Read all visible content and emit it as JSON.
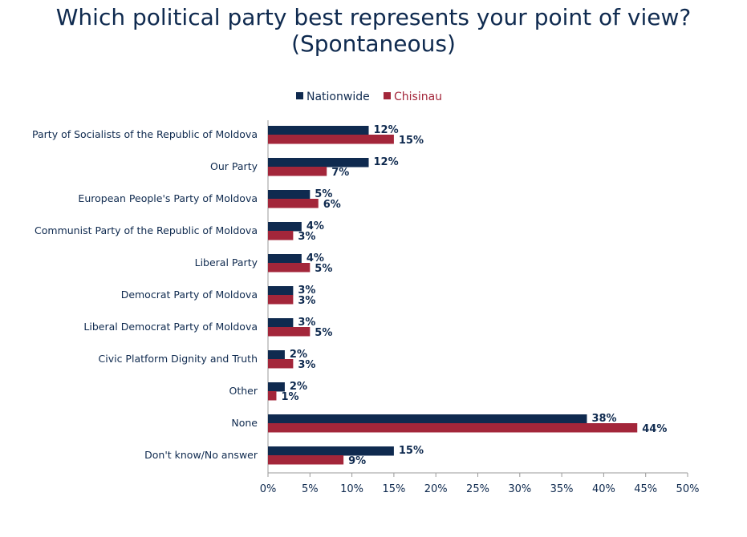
{
  "chart_data": {
    "type": "bar",
    "orientation": "horizontal",
    "title": "Which political party best represents your point of view?",
    "subtitle": "(Spontaneous)",
    "categories": [
      "Party of Socialists of the Republic of Moldova",
      "Our Party",
      "European People's Party of Moldova",
      "Communist Party of the Republic of Moldova",
      "Liberal Party",
      "Democrat Party of Moldova",
      "Liberal Democrat Party of Moldova",
      "Civic Platform Dignity and Truth",
      "Other",
      "None",
      "Don't know/No answer"
    ],
    "series": [
      {
        "name": "Nationwide",
        "color": "#0f2a4f",
        "values": [
          12,
          12,
          5,
          4,
          4,
          3,
          3,
          2,
          2,
          38,
          15
        ]
      },
      {
        "name": "Chisinau",
        "color": "#a3263a",
        "values": [
          15,
          7,
          6,
          3,
          5,
          3,
          5,
          3,
          1,
          44,
          9
        ]
      }
    ],
    "xlim": [
      0,
      50
    ],
    "xticks": [
      "0%",
      "5%",
      "10%",
      "15%",
      "20%",
      "25%",
      "30%",
      "35%",
      "40%",
      "45%",
      "50%"
    ],
    "xlabel": "",
    "ylabel": "",
    "grid": false,
    "legend": "top-center",
    "value_suffix": "%"
  }
}
